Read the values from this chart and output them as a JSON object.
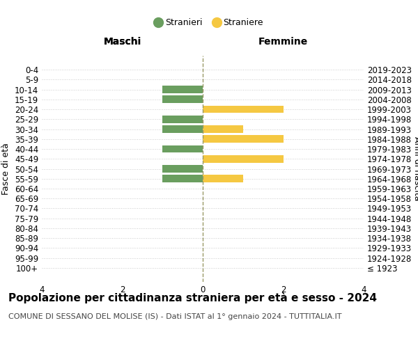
{
  "age_groups": [
    "100+",
    "95-99",
    "90-94",
    "85-89",
    "80-84",
    "75-79",
    "70-74",
    "65-69",
    "60-64",
    "55-59",
    "50-54",
    "45-49",
    "40-44",
    "35-39",
    "30-34",
    "25-29",
    "20-24",
    "15-19",
    "10-14",
    "5-9",
    "0-4"
  ],
  "birth_years": [
    "≤ 1923",
    "1924-1928",
    "1929-1933",
    "1934-1938",
    "1939-1943",
    "1944-1948",
    "1949-1953",
    "1954-1958",
    "1959-1963",
    "1964-1968",
    "1969-1973",
    "1974-1978",
    "1979-1983",
    "1984-1988",
    "1989-1993",
    "1994-1998",
    "1999-2003",
    "2004-2008",
    "2009-2013",
    "2014-2018",
    "2019-2023"
  ],
  "males": [
    0,
    0,
    0,
    0,
    0,
    0,
    0,
    0,
    0,
    1,
    1,
    0,
    1,
    0,
    1,
    1,
    0,
    1,
    1,
    0,
    0
  ],
  "females": [
    0,
    0,
    0,
    0,
    0,
    0,
    0,
    0,
    0,
    1,
    0,
    2,
    0,
    2,
    1,
    0,
    2,
    0,
    0,
    0,
    0
  ],
  "male_color": "#6a9e5f",
  "female_color": "#f5c842",
  "bar_height": 0.75,
  "xlim": [
    -4,
    4
  ],
  "xticks": [
    -4,
    -2,
    0,
    2,
    4
  ],
  "xticklabels": [
    "4",
    "2",
    "0",
    "2",
    "4"
  ],
  "title": "Popolazione per cittadinanza straniera per età e sesso - 2024",
  "subtitle": "COMUNE DI SESSANO DEL MOLISE (IS) - Dati ISTAT al 1° gennaio 2024 - TUTTITALIA.IT",
  "legend_stranieri": "Stranieri",
  "legend_straniere": "Straniere",
  "ylabel_left": "Fasce di età",
  "ylabel_right": "Anni di nascita",
  "label_maschi": "Maschi",
  "label_femmine": "Femmine",
  "grid_color": "#cccccc",
  "center_line_color": "#999966",
  "bg_color": "#ffffff",
  "title_fontsize": 11,
  "subtitle_fontsize": 8,
  "axis_label_fontsize": 9,
  "tick_fontsize": 8.5
}
